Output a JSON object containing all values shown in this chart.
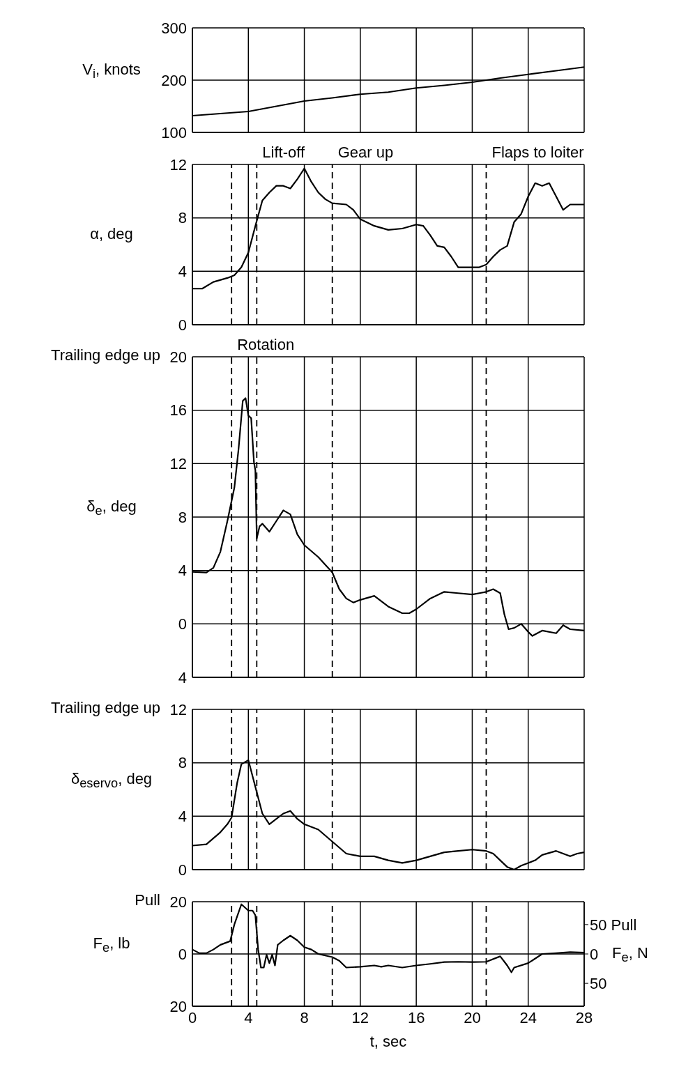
{
  "chart_data": [
    {
      "type": "line",
      "ylabel": "V$_{i}$, knots",
      "xlim": [
        0,
        28
      ],
      "xticks": [
        0,
        4,
        8,
        12,
        16,
        20,
        24,
        28
      ],
      "ylim": [
        100,
        300
      ],
      "yticks": [
        100,
        200,
        300
      ],
      "grid": true,
      "tick_labels": "y",
      "marker": "none",
      "line_style": "solid",
      "series": [
        {
          "color": "#000000",
          "x": [
            0,
            2,
            4,
            6,
            8,
            10,
            12,
            14,
            16,
            18,
            20,
            22,
            24,
            26,
            28
          ],
          "values": [
            132,
            136,
            140,
            150,
            160,
            166,
            173,
            177,
            185,
            190,
            196,
            204,
            211,
            218,
            225
          ]
        }
      ]
    },
    {
      "type": "line",
      "ylabel": "α, deg",
      "xlim": [
        0,
        28
      ],
      "xticks": [
        0,
        4,
        8,
        12,
        16,
        20,
        24,
        28
      ],
      "ylim": [
        0,
        12
      ],
      "yticks": [
        0,
        4,
        8,
        12
      ],
      "grid": true,
      "tick_labels": "y",
      "marker": "none",
      "line_style": "solid",
      "ref_lines": [
        {
          "axis": "x",
          "value": 2.8,
          "line_style": "dashed"
        },
        {
          "axis": "x",
          "value": 4.6,
          "label": "Lift-off",
          "line_style": "dashed"
        },
        {
          "axis": "x",
          "value": 10,
          "label": "Gear up",
          "line_style": "dashed"
        },
        {
          "axis": "x",
          "value": 21,
          "label": "Flaps to loiter",
          "line_style": "dashed"
        }
      ],
      "series": [
        {
          "color": "#000000",
          "x": [
            0,
            0.7,
            1.5,
            2.5,
            3,
            3.5,
            4,
            4.5,
            5,
            5.5,
            6,
            6.5,
            7,
            7.5,
            8,
            8.5,
            9,
            9.5,
            10,
            11,
            11.5,
            12,
            13,
            14,
            15,
            16,
            16.5,
            17,
            17.5,
            18,
            18.5,
            19,
            20,
            20.5,
            21,
            21.5,
            22,
            22.5,
            23,
            23.5,
            24,
            24.5,
            25,
            25.5,
            26,
            26.5,
            27,
            28
          ],
          "values": [
            2.7,
            2.7,
            3.2,
            3.5,
            3.7,
            4.3,
            5.4,
            7.4,
            9.3,
            9.9,
            10.4,
            10.4,
            10.2,
            10.9,
            11.7,
            10.7,
            9.9,
            9.4,
            9.1,
            9,
            8.6,
            7.9,
            7.4,
            7.1,
            7.2,
            7.5,
            7.4,
            6.7,
            5.9,
            5.8,
            5.1,
            4.3,
            4.3,
            4.3,
            4.5,
            5.1,
            5.6,
            5.9,
            7.7,
            8.3,
            9.6,
            10.6,
            10.4,
            10.6,
            9.6,
            8.6,
            9,
            9
          ]
        }
      ]
    },
    {
      "type": "line",
      "ylabel": "δ$_{e}$, deg",
      "annotations": [
        "Trailing edge up"
      ],
      "xlim": [
        0,
        28
      ],
      "xticks": [
        0,
        4,
        8,
        12,
        16,
        20,
        24,
        28
      ],
      "ylim": [
        -4,
        20
      ],
      "yticks": [
        {
          "value": -4,
          "label": "4"
        },
        0,
        4,
        8,
        12,
        16,
        20
      ],
      "grid": true,
      "tick_labels": "y",
      "marker": "none",
      "line_style": "solid",
      "ref_lines": [
        {
          "axis": "x",
          "value": 2.8,
          "label": "Rotation",
          "line_style": "dashed"
        },
        {
          "axis": "x",
          "value": 4.6,
          "line_style": "dashed"
        },
        {
          "axis": "x",
          "value": 10,
          "line_style": "dashed"
        },
        {
          "axis": "x",
          "value": 21,
          "line_style": "dashed"
        }
      ],
      "series": [
        {
          "color": "#000000",
          "x": [
            0,
            1,
            1.5,
            2,
            2.5,
            3,
            3.3,
            3.6,
            3.8,
            4,
            4.2,
            4.4,
            4.5,
            4.6,
            4.8,
            5,
            5.5,
            6,
            6.5,
            7,
            7.5,
            8,
            9,
            10,
            10.5,
            11,
            11.5,
            12,
            13,
            14,
            15,
            15.5,
            16,
            17,
            18,
            19,
            20,
            20.5,
            21,
            21.5,
            22,
            22.3,
            22.6,
            23,
            23.5,
            24,
            24.3,
            25,
            26,
            26.5,
            27,
            28
          ],
          "values": [
            3.9,
            3.85,
            4.2,
            5.4,
            7.7,
            10.2,
            13.1,
            16.7,
            16.9,
            15.6,
            15.4,
            12.1,
            11.5,
            6.4,
            7.3,
            7.5,
            6.9,
            7.7,
            8.5,
            8.2,
            6.7,
            5.9,
            5,
            3.85,
            2.6,
            1.9,
            1.6,
            1.8,
            2.1,
            1.3,
            0.8,
            0.8,
            1.1,
            1.9,
            2.4,
            2.3,
            2.2,
            2.3,
            2.4,
            2.6,
            2.3,
            0.7,
            -0.4,
            -0.3,
            0,
            -0.6,
            -0.9,
            -0.5,
            -0.7,
            -0.1,
            -0.4,
            -0.5
          ]
        }
      ]
    },
    {
      "type": "line",
      "ylabel": "δ$_{e}$$_{servo}$, deg",
      "annotations": [
        "Trailing edge up"
      ],
      "xlim": [
        0,
        28
      ],
      "xticks": [
        0,
        4,
        8,
        12,
        16,
        20,
        24,
        28
      ],
      "ylim": [
        0,
        12
      ],
      "yticks": [
        0,
        4,
        8,
        12
      ],
      "grid": true,
      "tick_labels": "y",
      "marker": "none",
      "line_style": "solid",
      "ref_lines": [
        {
          "axis": "x",
          "value": 2.8,
          "line_style": "dashed"
        },
        {
          "axis": "x",
          "value": 4.6,
          "line_style": "dashed"
        },
        {
          "axis": "x",
          "value": 10,
          "line_style": "dashed"
        },
        {
          "axis": "x",
          "value": 21,
          "line_style": "dashed"
        }
      ],
      "series": [
        {
          "color": "#000000",
          "x": [
            0,
            1,
            2,
            2.5,
            2.8,
            3.2,
            3.5,
            4,
            4.5,
            5,
            5.5,
            6,
            6.5,
            7,
            7.5,
            8,
            9,
            10,
            11,
            12,
            13,
            14,
            15,
            16,
            17,
            18,
            19,
            20,
            21,
            21.5,
            22,
            22.5,
            23,
            23.5,
            24,
            24.5,
            25,
            26,
            26.5,
            27,
            27.5,
            28
          ],
          "values": [
            1.8,
            1.9,
            2.8,
            3.4,
            3.9,
            6.5,
            7.9,
            8.2,
            6.2,
            4.2,
            3.4,
            3.8,
            4.2,
            4.4,
            3.8,
            3.4,
            3,
            2.1,
            1.2,
            1,
            1,
            0.7,
            0.5,
            0.7,
            1,
            1.3,
            1.4,
            1.5,
            1.4,
            1.2,
            0.7,
            0.2,
            0,
            0.3,
            0.5,
            0.7,
            1.1,
            1.4,
            1.2,
            1,
            1.2,
            1.3
          ]
        }
      ]
    },
    {
      "type": "line",
      "ylabel": "F$_{e}$, lb",
      "y2label": "F$_{e}$, N",
      "xlabel": "t, sec",
      "annotations": [
        "Pull"
      ],
      "xlim": [
        0,
        28
      ],
      "xticks": [
        0,
        4,
        8,
        12,
        16,
        20,
        24,
        28
      ],
      "ylim": [
        -20,
        20
      ],
      "yticks": [
        {
          "value": -20,
          "label": "20"
        },
        0,
        20
      ],
      "y2lim": [
        -89,
        89
      ],
      "y2ticks": [
        {
          "value": -50,
          "label": "50"
        },
        0,
        {
          "value": 50,
          "label": "50 Pull"
        }
      ],
      "grid": true,
      "marker": "none",
      "line_style": "solid",
      "ref_lines": [
        {
          "axis": "x",
          "value": 2.8,
          "line_style": "dashed"
        },
        {
          "axis": "x",
          "value": 4.6,
          "line_style": "dashed"
        },
        {
          "axis": "x",
          "value": 10,
          "line_style": "dashed"
        },
        {
          "axis": "x",
          "value": 21,
          "line_style": "dashed"
        }
      ],
      "series": [
        {
          "color": "#000000",
          "x": [
            0,
            0.5,
            1,
            1.5,
            2,
            2.7,
            3,
            3.5,
            4,
            4.3,
            4.5,
            4.7,
            4.9,
            5.1,
            5.3,
            5.5,
            5.7,
            5.9,
            6.1,
            6.5,
            7,
            7.5,
            8,
            8.5,
            9,
            10,
            10.5,
            11,
            12,
            13,
            13.5,
            14,
            15,
            16,
            17,
            18,
            19,
            20,
            21,
            22,
            22.5,
            22.8,
            23,
            24,
            25,
            26,
            27,
            28
          ],
          "values": [
            1.7,
            0.3,
            0.3,
            1.7,
            3.5,
            4.9,
            11.3,
            19,
            16.6,
            16.6,
            14.8,
            1.7,
            -5.2,
            -5.2,
            -0.3,
            -3.5,
            -0.3,
            -4.4,
            3.5,
            5.2,
            7,
            5.2,
            2.6,
            1.7,
            0,
            -1.2,
            -2.6,
            -5.2,
            -4.9,
            -4.4,
            -4.9,
            -4.4,
            -5.2,
            -4.4,
            -3.8,
            -3.1,
            -3,
            -3.1,
            -3,
            -0.9,
            -4.4,
            -7,
            -5.2,
            -3.5,
            0,
            0.3,
            0.7,
            0.5
          ]
        }
      ]
    }
  ]
}
